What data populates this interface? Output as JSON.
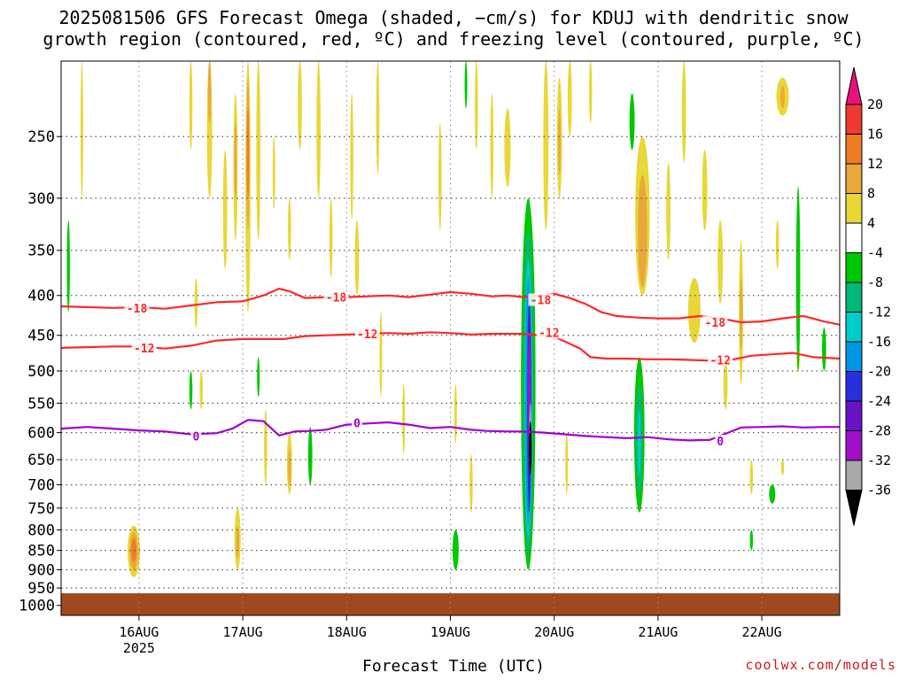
{
  "title_line1": "2025081506 GFS Forecast Omega (shaded, −cm/s) for KDUJ with dendritic snow",
  "title_line2": "growth region (contoured, red, ºC) and freezing level (contoured, purple, ºC)",
  "xlabel": "Forecast Time (UTC)",
  "credit": "coolwx.com/models",
  "chart_data": {
    "type": "heatmap",
    "y_axis": {
      "scale": "log-pressure",
      "tick_labels": [
        "250",
        "300",
        "350",
        "400",
        "450",
        "500",
        "550",
        "600",
        "650",
        "700",
        "750",
        "800",
        "850",
        "900",
        "950",
        "1000"
      ],
      "range": [
        200,
        1030
      ]
    },
    "x_axis": {
      "tick_labels": [
        "16AUG",
        "17AUG",
        "18AUG",
        "19AUG",
        "20AUG",
        "21AUG",
        "22AUG"
      ],
      "sub_label": "2025",
      "range_days": [
        15.25,
        22.75
      ]
    },
    "colorbar": {
      "levels": [
        "20",
        "16",
        "12",
        "8",
        "4",
        "-4",
        "-8",
        "-12",
        "-16",
        "-20",
        "-24",
        "-28",
        "-32",
        "-36"
      ],
      "colors": [
        "#e8117d",
        "#ee3a30",
        "#ee7c25",
        "#e8a93a",
        "#e8d737",
        "#ffffff",
        "#00c800",
        "#00b878",
        "#00cccc",
        "#0096e8",
        "#2830dc",
        "#6a12c8",
        "#a010c8",
        "#a8a8a8",
        "#000000"
      ]
    },
    "contours": [
      {
        "color": "#ff2828",
        "label": "-18",
        "label_positions": [
          [
            15.98,
            415
          ],
          [
            17.9,
            402
          ],
          [
            19.87,
            405
          ],
          [
            21.55,
            433
          ]
        ],
        "points": [
          [
            15.25,
            413
          ],
          [
            15.5,
            414
          ],
          [
            15.75,
            415
          ],
          [
            16.0,
            414
          ],
          [
            16.25,
            416
          ],
          [
            16.5,
            412
          ],
          [
            16.75,
            408
          ],
          [
            17.0,
            407
          ],
          [
            17.2,
            400
          ],
          [
            17.35,
            392
          ],
          [
            17.45,
            395
          ],
          [
            17.6,
            403
          ],
          [
            17.8,
            402
          ],
          [
            18.0,
            402
          ],
          [
            18.2,
            401
          ],
          [
            18.4,
            400
          ],
          [
            18.6,
            402
          ],
          [
            18.8,
            399
          ],
          [
            19.0,
            396
          ],
          [
            19.2,
            398
          ],
          [
            19.4,
            401
          ],
          [
            19.55,
            400
          ],
          [
            19.7,
            402
          ],
          [
            19.85,
            400
          ],
          [
            20.0,
            398
          ],
          [
            20.15,
            403
          ],
          [
            20.3,
            410
          ],
          [
            20.45,
            420
          ],
          [
            20.6,
            425
          ],
          [
            20.8,
            427
          ],
          [
            21.0,
            428
          ],
          [
            21.2,
            428
          ],
          [
            21.4,
            425
          ],
          [
            21.6,
            428
          ],
          [
            21.8,
            433
          ],
          [
            22.0,
            432
          ],
          [
            22.2,
            428
          ],
          [
            22.4,
            425
          ],
          [
            22.6,
            432
          ],
          [
            22.75,
            436
          ]
        ]
      },
      {
        "color": "#ff2828",
        "label": "-12",
        "label_positions": [
          [
            16.05,
            467
          ],
          [
            18.2,
            448
          ],
          [
            19.95,
            446
          ],
          [
            21.6,
            484
          ]
        ],
        "points": [
          [
            15.25,
            467
          ],
          [
            15.5,
            466
          ],
          [
            15.75,
            465
          ],
          [
            16.0,
            465
          ],
          [
            16.25,
            468
          ],
          [
            16.5,
            464
          ],
          [
            16.75,
            457
          ],
          [
            17.0,
            455
          ],
          [
            17.2,
            455
          ],
          [
            17.4,
            455
          ],
          [
            17.6,
            451
          ],
          [
            17.8,
            450
          ],
          [
            18.0,
            449
          ],
          [
            18.2,
            448
          ],
          [
            18.4,
            447
          ],
          [
            18.6,
            448
          ],
          [
            18.8,
            446
          ],
          [
            19.0,
            447
          ],
          [
            19.2,
            449
          ],
          [
            19.4,
            448
          ],
          [
            19.55,
            448
          ],
          [
            19.7,
            448
          ],
          [
            19.85,
            450
          ],
          [
            20.0,
            452
          ],
          [
            20.1,
            458
          ],
          [
            20.25,
            468
          ],
          [
            20.35,
            480
          ],
          [
            20.5,
            482
          ],
          [
            20.7,
            482
          ],
          [
            20.9,
            483
          ],
          [
            21.1,
            483
          ],
          [
            21.3,
            484
          ],
          [
            21.5,
            485
          ],
          [
            21.7,
            484
          ],
          [
            21.9,
            478
          ],
          [
            22.1,
            476
          ],
          [
            22.3,
            474
          ],
          [
            22.5,
            480
          ],
          [
            22.75,
            482
          ]
        ]
      },
      {
        "color": "#a000d2",
        "label": "0",
        "label_positions": [
          [
            16.55,
            606
          ],
          [
            18.1,
            583
          ],
          [
            21.6,
            615
          ]
        ],
        "points": [
          [
            15.25,
            593
          ],
          [
            15.5,
            590
          ],
          [
            15.75,
            593
          ],
          [
            16.0,
            596
          ],
          [
            16.25,
            598
          ],
          [
            16.5,
            603
          ],
          [
            16.75,
            601
          ],
          [
            16.9,
            593
          ],
          [
            17.05,
            578
          ],
          [
            17.2,
            580
          ],
          [
            17.35,
            605
          ],
          [
            17.5,
            598
          ],
          [
            17.65,
            597
          ],
          [
            17.8,
            595
          ],
          [
            18.0,
            586
          ],
          [
            18.2,
            584
          ],
          [
            18.4,
            582
          ],
          [
            18.6,
            586
          ],
          [
            18.8,
            592
          ],
          [
            19.0,
            590
          ],
          [
            19.2,
            595
          ],
          [
            19.35,
            597
          ],
          [
            19.55,
            598
          ],
          [
            19.7,
            598
          ],
          [
            19.9,
            600
          ],
          [
            20.1,
            603
          ],
          [
            20.3,
            606
          ],
          [
            20.5,
            608
          ],
          [
            20.7,
            610
          ],
          [
            20.9,
            608
          ],
          [
            21.1,
            612
          ],
          [
            21.3,
            614
          ],
          [
            21.5,
            613
          ],
          [
            21.65,
            602
          ],
          [
            21.8,
            591
          ],
          [
            22.0,
            590
          ],
          [
            22.2,
            589
          ],
          [
            22.4,
            591
          ],
          [
            22.6,
            590
          ],
          [
            22.75,
            590
          ]
        ]
      }
    ],
    "shaded_regions": [
      {
        "value": "4",
        "t": 15.45,
        "p_top": 200,
        "p_bot": 300,
        "w": 0.025
      },
      {
        "value": "4",
        "t": 15.95,
        "p_top": 790,
        "p_bot": 920,
        "w": 0.12
      },
      {
        "value": "8",
        "t": 15.95,
        "p_top": 805,
        "p_bot": 900,
        "w": 0.08
      },
      {
        "value": "12",
        "t": 15.95,
        "p_top": 820,
        "p_bot": 880,
        "w": 0.05
      },
      {
        "value": "4",
        "t": 16.5,
        "p_top": 200,
        "p_bot": 260,
        "w": 0.03
      },
      {
        "value": "4",
        "t": 16.55,
        "p_top": 380,
        "p_bot": 440,
        "w": 0.03
      },
      {
        "value": "4",
        "t": 16.6,
        "p_top": 500,
        "p_bot": 560,
        "w": 0.03
      },
      {
        "value": "4",
        "t": 16.68,
        "p_top": 200,
        "p_bot": 300,
        "w": 0.05
      },
      {
        "value": "8",
        "t": 16.68,
        "p_top": 200,
        "p_bot": 240,
        "w": 0.03
      },
      {
        "value": "4",
        "t": 16.83,
        "p_top": 260,
        "p_bot": 370,
        "w": 0.04
      },
      {
        "value": "4",
        "t": 16.93,
        "p_top": 220,
        "p_bot": 340,
        "w": 0.04
      },
      {
        "value": "8",
        "t": 16.93,
        "p_top": 240,
        "p_bot": 300,
        "w": 0.02
      },
      {
        "value": "4",
        "t": 17.05,
        "p_top": 200,
        "p_bot": 420,
        "w": 0.05
      },
      {
        "value": "8",
        "t": 17.05,
        "p_top": 210,
        "p_bot": 330,
        "w": 0.03
      },
      {
        "value": "12",
        "t": 17.05,
        "p_top": 230,
        "p_bot": 300,
        "w": 0.015
      },
      {
        "value": "4",
        "t": 16.95,
        "p_top": 750,
        "p_bot": 900,
        "w": 0.06
      },
      {
        "value": "8",
        "t": 16.95,
        "p_top": 790,
        "p_bot": 870,
        "w": 0.03
      },
      {
        "value": "4",
        "t": 17.15,
        "p_top": 200,
        "p_bot": 340,
        "w": 0.04
      },
      {
        "value": "4",
        "t": 17.22,
        "p_top": 560,
        "p_bot": 700,
        "w": 0.03
      },
      {
        "value": "4",
        "t": 17.3,
        "p_top": 250,
        "p_bot": 310,
        "w": 0.025
      },
      {
        "value": "4",
        "t": 17.45,
        "p_top": 300,
        "p_bot": 360,
        "w": 0.03
      },
      {
        "value": "4",
        "t": 17.55,
        "p_top": 200,
        "p_bot": 260,
        "w": 0.04
      },
      {
        "value": "4",
        "t": 17.45,
        "p_top": 600,
        "p_bot": 720,
        "w": 0.05
      },
      {
        "value": "8",
        "t": 17.45,
        "p_top": 630,
        "p_bot": 700,
        "w": 0.025
      },
      {
        "value": "4",
        "t": 17.73,
        "p_top": 200,
        "p_bot": 300,
        "w": 0.04
      },
      {
        "value": "4",
        "t": 17.85,
        "p_top": 300,
        "p_bot": 380,
        "w": 0.03
      },
      {
        "value": "4",
        "t": 18.05,
        "p_top": 220,
        "p_bot": 320,
        "w": 0.03
      },
      {
        "value": "4",
        "t": 18.1,
        "p_top": 320,
        "p_bot": 400,
        "w": 0.04
      },
      {
        "value": "4",
        "t": 18.3,
        "p_top": 200,
        "p_bot": 280,
        "w": 0.03
      },
      {
        "value": "4",
        "t": 18.33,
        "p_top": 420,
        "p_bot": 540,
        "w": 0.025
      },
      {
        "value": "4",
        "t": 18.55,
        "p_top": 520,
        "p_bot": 640,
        "w": 0.025
      },
      {
        "value": "4",
        "t": 18.9,
        "p_top": 240,
        "p_bot": 330,
        "w": 0.03
      },
      {
        "value": "4",
        "t": 19.05,
        "p_top": 520,
        "p_bot": 620,
        "w": 0.025
      },
      {
        "value": "4",
        "t": 19.2,
        "p_top": 640,
        "p_bot": 760,
        "w": 0.03
      },
      {
        "value": "4",
        "t": 19.25,
        "p_top": 200,
        "p_bot": 260,
        "w": 0.03
      },
      {
        "value": "4",
        "t": 19.4,
        "p_top": 220,
        "p_bot": 300,
        "w": 0.03
      },
      {
        "value": "4",
        "t": 19.55,
        "p_top": 230,
        "p_bot": 290,
        "w": 0.06
      },
      {
        "value": "4",
        "t": 19.92,
        "p_top": 200,
        "p_bot": 330,
        "w": 0.05
      },
      {
        "value": "4",
        "t": 20.05,
        "p_top": 210,
        "p_bot": 300,
        "w": 0.05
      },
      {
        "value": "8",
        "t": 20.05,
        "p_top": 230,
        "p_bot": 280,
        "w": 0.02
      },
      {
        "value": "4",
        "t": 20.12,
        "p_top": 600,
        "p_bot": 720,
        "w": 0.025
      },
      {
        "value": "4",
        "t": 20.15,
        "p_top": 200,
        "p_bot": 250,
        "w": 0.04
      },
      {
        "value": "4",
        "t": 20.35,
        "p_top": 200,
        "p_bot": 240,
        "w": 0.03
      },
      {
        "value": "4",
        "t": 20.85,
        "p_top": 250,
        "p_bot": 400,
        "w": 0.14
      },
      {
        "value": "8",
        "t": 20.85,
        "p_top": 280,
        "p_bot": 390,
        "w": 0.09
      },
      {
        "value": "4",
        "t": 21.1,
        "p_top": 270,
        "p_bot": 360,
        "w": 0.04
      },
      {
        "value": "4",
        "t": 21.25,
        "p_top": 200,
        "p_bot": 270,
        "w": 0.04
      },
      {
        "value": "4",
        "t": 21.35,
        "p_top": 380,
        "p_bot": 460,
        "w": 0.12
      },
      {
        "value": "4",
        "t": 21.45,
        "p_top": 260,
        "p_bot": 330,
        "w": 0.05
      },
      {
        "value": "4",
        "t": 21.6,
        "p_top": 320,
        "p_bot": 410,
        "w": 0.05
      },
      {
        "value": "4",
        "t": 21.65,
        "p_top": 480,
        "p_bot": 560,
        "w": 0.04
      },
      {
        "value": "4",
        "t": 21.8,
        "p_top": 340,
        "p_bot": 520,
        "w": 0.04
      },
      {
        "value": "8",
        "t": 21.8,
        "p_top": 380,
        "p_bot": 470,
        "w": 0.02
      },
      {
        "value": "4",
        "t": 21.9,
        "p_top": 650,
        "p_bot": 720,
        "w": 0.03
      },
      {
        "value": "4",
        "t": 22.2,
        "p_top": 210,
        "p_bot": 235,
        "w": 0.12
      },
      {
        "value": "8",
        "t": 22.2,
        "p_top": 215,
        "p_bot": 230,
        "w": 0.04
      },
      {
        "value": "4",
        "t": 22.15,
        "p_top": 320,
        "p_bot": 370,
        "w": 0.03
      },
      {
        "value": "4",
        "t": 22.2,
        "p_top": 650,
        "p_bot": 680,
        "w": 0.03
      },
      {
        "value": "4",
        "t": 22.35,
        "p_top": 460,
        "p_bot": 500,
        "w": 0.03
      },
      {
        "value": "-4",
        "t": 15.32,
        "p_top": 320,
        "p_bot": 420,
        "w": 0.03
      },
      {
        "value": "-4",
        "t": 16.5,
        "p_top": 500,
        "p_bot": 560,
        "w": 0.03
      },
      {
        "value": "-4",
        "t": 17.15,
        "p_top": 480,
        "p_bot": 540,
        "w": 0.025
      },
      {
        "value": "-4",
        "t": 17.65,
        "p_top": 590,
        "p_bot": 700,
        "w": 0.04
      },
      {
        "value": "-4",
        "t": 19.05,
        "p_top": 800,
        "p_bot": 900,
        "w": 0.06
      },
      {
        "value": "-4",
        "t": 19.15,
        "p_top": 200,
        "p_bot": 230,
        "w": 0.02
      },
      {
        "value": "-4",
        "t": 19.75,
        "p_top": 300,
        "p_bot": 900,
        "w": 0.14
      },
      {
        "value": "-8",
        "t": 19.75,
        "p_top": 330,
        "p_bot": 860,
        "w": 0.1
      },
      {
        "value": "-12",
        "t": 19.75,
        "p_top": 360,
        "p_bot": 820,
        "w": 0.075
      },
      {
        "value": "-16",
        "t": 19.75,
        "p_top": 380,
        "p_bot": 790,
        "w": 0.055
      },
      {
        "value": "-20",
        "t": 19.76,
        "p_top": 400,
        "p_bot": 760,
        "w": 0.04
      },
      {
        "value": "-24",
        "t": 19.76,
        "p_top": 420,
        "p_bot": 700,
        "w": 0.03
      },
      {
        "value": "-28",
        "t": 19.76,
        "p_top": 450,
        "p_bot": 650,
        "w": 0.02
      },
      {
        "value": "-32",
        "t": 19.77,
        "p_top": 550,
        "p_bot": 680,
        "w": 0.012
      },
      {
        "value": "-36",
        "t": 19.77,
        "p_top": 580,
        "p_bot": 680,
        "w": 0.008
      },
      {
        "value": "-4",
        "t": 20.75,
        "p_top": 220,
        "p_bot": 260,
        "w": 0.05
      },
      {
        "value": "-4",
        "t": 20.82,
        "p_top": 480,
        "p_bot": 760,
        "w": 0.1
      },
      {
        "value": "-8",
        "t": 20.82,
        "p_top": 520,
        "p_bot": 720,
        "w": 0.06
      },
      {
        "value": "-12",
        "t": 20.82,
        "p_top": 560,
        "p_bot": 680,
        "w": 0.03
      },
      {
        "value": "-4",
        "t": 21.9,
        "p_top": 800,
        "p_bot": 850,
        "w": 0.03
      },
      {
        "value": "-4",
        "t": 22.1,
        "p_top": 700,
        "p_bot": 740,
        "w": 0.06
      },
      {
        "value": "-4",
        "t": 22.35,
        "p_top": 290,
        "p_bot": 500,
        "w": 0.04
      },
      {
        "value": "-4",
        "t": 22.6,
        "p_top": 440,
        "p_bot": 500,
        "w": 0.04
      }
    ],
    "surface": {
      "color": "#a04820",
      "p_top": 965
    }
  }
}
